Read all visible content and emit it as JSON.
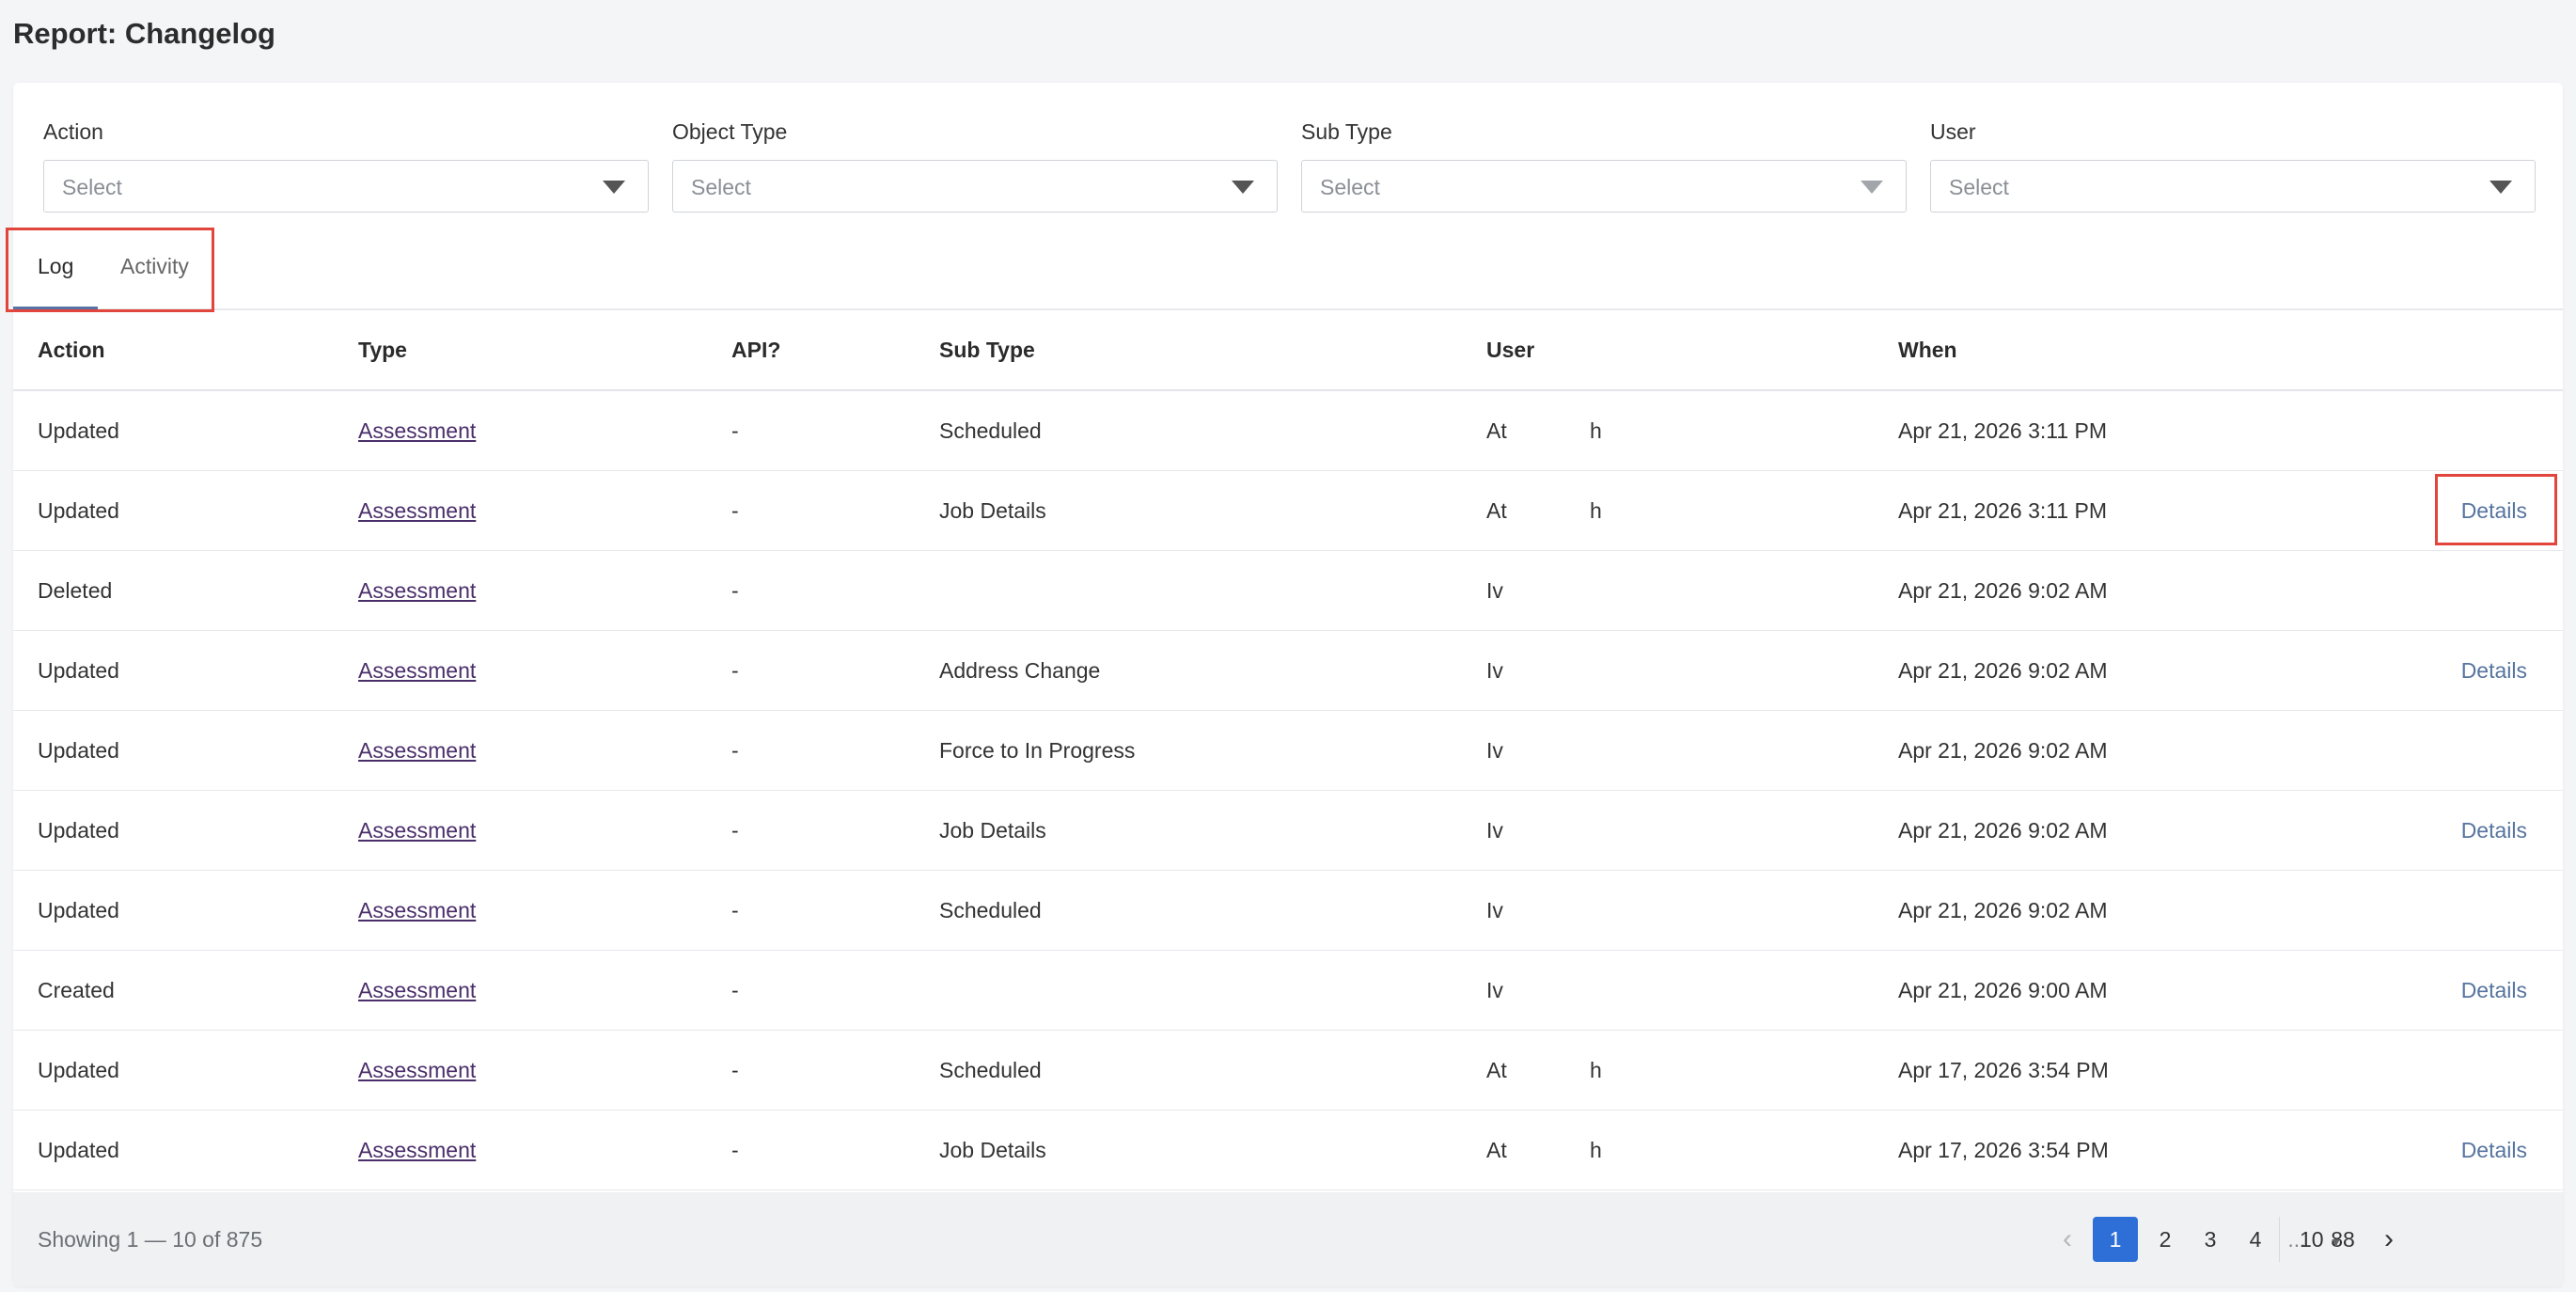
{
  "page": {
    "title": "Report: Changelog"
  },
  "filters": [
    {
      "label": "Action",
      "placeholder": "Select"
    },
    {
      "label": "Object Type",
      "placeholder": "Select"
    },
    {
      "label": "Sub Type",
      "placeholder": "Select"
    },
    {
      "label": "User",
      "placeholder": "Select"
    }
  ],
  "tabs": [
    {
      "label": "Log",
      "active": true
    },
    {
      "label": "Activity",
      "active": false
    }
  ],
  "table": {
    "headers": {
      "action": "Action",
      "type": "Type",
      "api": "API?",
      "subtype": "Sub Type",
      "user": "User",
      "when": "When"
    },
    "rows": [
      {
        "action": "Updated",
        "type": "Assessment",
        "api": "-",
        "subtype": "Scheduled",
        "user_a": "At",
        "user_b": "h",
        "when": "Apr 21, 2026 3:11 PM",
        "details": ""
      },
      {
        "action": "Updated",
        "type": "Assessment",
        "api": "-",
        "subtype": "Job Details",
        "user_a": "At",
        "user_b": "h",
        "when": "Apr 21, 2026 3:11 PM",
        "details": "Details"
      },
      {
        "action": "Deleted",
        "type": "Assessment",
        "api": "-",
        "subtype": "",
        "user_a": "Iv",
        "user_b": "",
        "when": "Apr 21, 2026 9:02 AM",
        "details": ""
      },
      {
        "action": "Updated",
        "type": "Assessment",
        "api": "-",
        "subtype": "Address Change",
        "user_a": "Iv",
        "user_b": "",
        "when": "Apr 21, 2026 9:02 AM",
        "details": "Details"
      },
      {
        "action": "Updated",
        "type": "Assessment",
        "api": "-",
        "subtype": "Force to In Progress",
        "user_a": "Iv",
        "user_b": "",
        "when": "Apr 21, 2026 9:02 AM",
        "details": ""
      },
      {
        "action": "Updated",
        "type": "Assessment",
        "api": "-",
        "subtype": "Job Details",
        "user_a": "Iv",
        "user_b": "",
        "when": "Apr 21, 2026 9:02 AM",
        "details": "Details"
      },
      {
        "action": "Updated",
        "type": "Assessment",
        "api": "-",
        "subtype": "Scheduled",
        "user_a": "Iv",
        "user_b": "",
        "when": "Apr 21, 2026 9:02 AM",
        "details": ""
      },
      {
        "action": "Created",
        "type": "Assessment",
        "api": "-",
        "subtype": "",
        "user_a": "Iv",
        "user_b": "",
        "when": "Apr 21, 2026 9:00 AM",
        "details": "Details"
      },
      {
        "action": "Updated",
        "type": "Assessment",
        "api": "-",
        "subtype": "Scheduled",
        "user_a": "At",
        "user_b": "h",
        "when": "Apr 17, 2026 3:54 PM",
        "details": ""
      },
      {
        "action": "Updated",
        "type": "Assessment",
        "api": "-",
        "subtype": "Job Details",
        "user_a": "At",
        "user_b": "h",
        "when": "Apr 17, 2026 3:54 PM",
        "details": "Details"
      }
    ]
  },
  "footer": {
    "showing": "Showing 1 — 10 of 875",
    "pagination": {
      "pages": [
        "1",
        "2",
        "3",
        "4",
        "...",
        "88"
      ],
      "current": "1",
      "prev_icon": "chevron-left-icon",
      "next_icon": "chevron-right-icon"
    },
    "per_page": "10"
  },
  "colors": {
    "accent": "#2e6fd7",
    "highlight": "#e2453c",
    "link": "#56749f"
  }
}
